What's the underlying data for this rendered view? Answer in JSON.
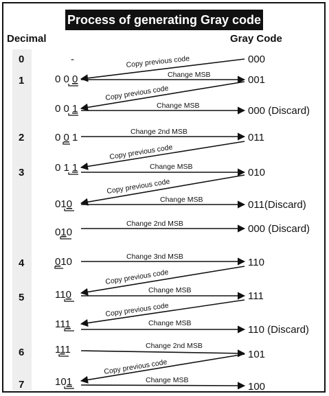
{
  "title": "Process of generating Gray code",
  "header": {
    "decimal": "Decimal",
    "gray": "Gray Code"
  },
  "decimals": [
    "0",
    "1",
    "2",
    "3",
    "4",
    "5",
    "6",
    "7"
  ],
  "steps": [
    {
      "decimal": "0",
      "left": "-",
      "gray": "000",
      "label": "Copy previous code",
      "kind": "copy"
    },
    {
      "decimal": "1",
      "left": "000",
      "changed": 2,
      "gray": "001",
      "label": "Change MSB",
      "kind": "change"
    },
    {
      "decimal": "",
      "left": "001",
      "changed": 2,
      "gray": "001",
      "label": "Copy previous code",
      "kind": "copy"
    },
    {
      "decimal": "",
      "left": "001",
      "changed": 2,
      "gray": "000 (Discard)",
      "label": "Change MSB",
      "kind": "change"
    },
    {
      "decimal": "2",
      "left": "001",
      "changed": 1,
      "gray": "011",
      "label": "Change 2nd MSB",
      "kind": "change"
    },
    {
      "decimal": "",
      "left": "011",
      "gray": "011",
      "label": "Copy previous code",
      "kind": "copy"
    },
    {
      "decimal": "3",
      "left": "011",
      "changed": 2,
      "gray": "010",
      "label": "Change MSB",
      "kind": "change"
    },
    {
      "decimal": "",
      "left": "010",
      "gray": "010",
      "label": "Copy previous code",
      "kind": "copy"
    },
    {
      "decimal": "",
      "left": "010",
      "changed": 2,
      "gray": "011(Discard)",
      "label": "Change MSB",
      "kind": "change"
    },
    {
      "decimal": "",
      "left": "010",
      "changed": 1,
      "gray": "000 (Discard)",
      "label": "Change 2nd MSB",
      "kind": "change"
    },
    {
      "decimal": "4",
      "left": "010",
      "changed": 0,
      "gray": "110",
      "label": "Change 3nd MSB",
      "kind": "change"
    },
    {
      "decimal": "",
      "left": "110",
      "gray": "110",
      "label": "Copy previous code",
      "kind": "copy"
    },
    {
      "decimal": "5",
      "left": "110",
      "changed": 2,
      "gray": "111",
      "label": "Change MSB",
      "kind": "change"
    },
    {
      "decimal": "",
      "left": "111",
      "gray": "111",
      "label": "Copy previous code",
      "kind": "copy"
    },
    {
      "decimal": "",
      "left": "111",
      "changed": 2,
      "gray": "110 (Discard)",
      "label": "Change MSB",
      "kind": "change"
    },
    {
      "decimal": "6",
      "left": "111",
      "changed": 1,
      "gray": "101",
      "label": "Change 2nd MSB",
      "kind": "change"
    },
    {
      "decimal": "",
      "left": "101",
      "gray": "101",
      "label": "Copy previous code",
      "kind": "copy"
    },
    {
      "decimal": "7",
      "left": "101",
      "changed": 2,
      "gray": "100",
      "label": "Change MSB",
      "kind": "change"
    }
  ]
}
